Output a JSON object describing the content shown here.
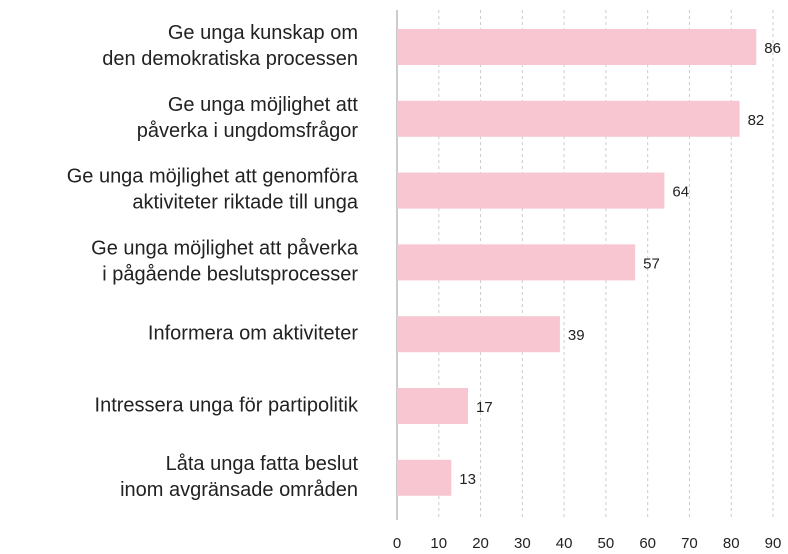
{
  "chart_data": {
    "type": "bar",
    "orientation": "horizontal",
    "categories": [
      "Ge unga kunskap om\nden demokratiska processen",
      "Ge unga möjlighet att\npåverka i ungdomsfrågor",
      "Ge unga möjlighet att genomföra\naktiviteter riktade till unga",
      "Ge unga möjlighet att påverka\ni pågående beslutsprocesser",
      "Informera om aktiviteter",
      "Intressera unga för partipolitik",
      "Låta unga fatta beslut\ninom avgränsade områden"
    ],
    "values": [
      86,
      82,
      64,
      57,
      39,
      17,
      13
    ],
    "color": "#f7c6d0",
    "xlim": [
      0,
      90
    ],
    "xticks": [
      0,
      10,
      20,
      30,
      40,
      50,
      60,
      70,
      80,
      90
    ],
    "grid": true
  }
}
